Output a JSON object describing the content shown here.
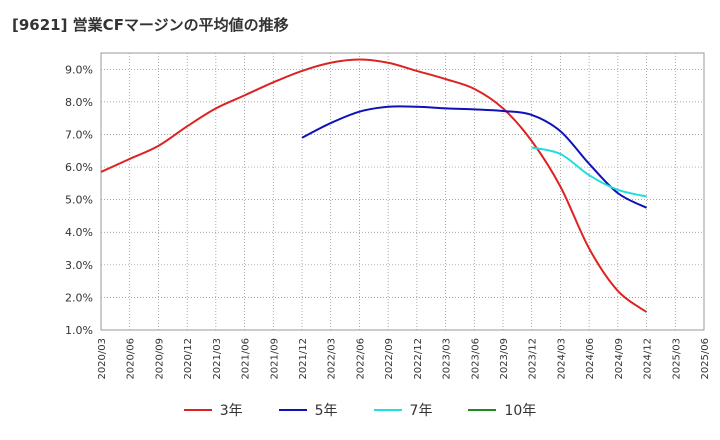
{
  "title": "[9621]  営業CFマージンの平均値の推移",
  "chart_data": {
    "type": "line",
    "title": "[9621]  営業CFマージンの平均値の推移",
    "xlabel": "",
    "ylabel": "",
    "ylim": [
      1.0,
      9.5
    ],
    "yticks": [
      "1.0%",
      "2.0%",
      "3.0%",
      "4.0%",
      "5.0%",
      "6.0%",
      "7.0%",
      "8.0%",
      "9.0%"
    ],
    "ytick_values": [
      1,
      2,
      3,
      4,
      5,
      6,
      7,
      8,
      9
    ],
    "xticks": [
      "2020/03",
      "2020/06",
      "2020/09",
      "2020/12",
      "2021/03",
      "2021/06",
      "2021/09",
      "2021/12",
      "2022/03",
      "2022/06",
      "2022/09",
      "2022/12",
      "2023/03",
      "2023/06",
      "2023/09",
      "2023/12",
      "2024/03",
      "2024/06",
      "2024/09",
      "2024/12",
      "2025/03",
      "2025/06"
    ],
    "grid": true,
    "legend_position": "bottom",
    "series": [
      {
        "name": "3年",
        "color": "#dd2222",
        "x": [
          "2020/03",
          "2020/06",
          "2020/09",
          "2020/12",
          "2021/03",
          "2021/06",
          "2021/09",
          "2021/12",
          "2022/03",
          "2022/06",
          "2022/09",
          "2022/12",
          "2023/03",
          "2023/06",
          "2023/09",
          "2023/12",
          "2024/03",
          "2024/06",
          "2024/09",
          "2024/12"
        ],
        "values": [
          5.85,
          6.25,
          6.65,
          7.25,
          7.8,
          8.2,
          8.6,
          8.95,
          9.2,
          9.3,
          9.2,
          8.95,
          8.7,
          8.4,
          7.8,
          6.8,
          5.4,
          3.5,
          2.2,
          1.55
        ]
      },
      {
        "name": "5年",
        "color": "#1111bb",
        "x": [
          "2021/12",
          "2022/03",
          "2022/06",
          "2022/09",
          "2022/12",
          "2023/03",
          "2023/06",
          "2023/09",
          "2023/12",
          "2024/03",
          "2024/06",
          "2024/09",
          "2024/12"
        ],
        "values": [
          6.9,
          7.35,
          7.7,
          7.85,
          7.85,
          7.8,
          7.77,
          7.72,
          7.6,
          7.1,
          6.1,
          5.2,
          4.75
        ]
      },
      {
        "name": "7年",
        "color": "#22dddd",
        "x": [
          "2023/12",
          "2024/03",
          "2024/06",
          "2024/09",
          "2024/12"
        ],
        "values": [
          6.6,
          6.4,
          5.75,
          5.3,
          5.1
        ]
      },
      {
        "name": "10年",
        "color": "#228822",
        "x": [],
        "values": []
      }
    ]
  }
}
